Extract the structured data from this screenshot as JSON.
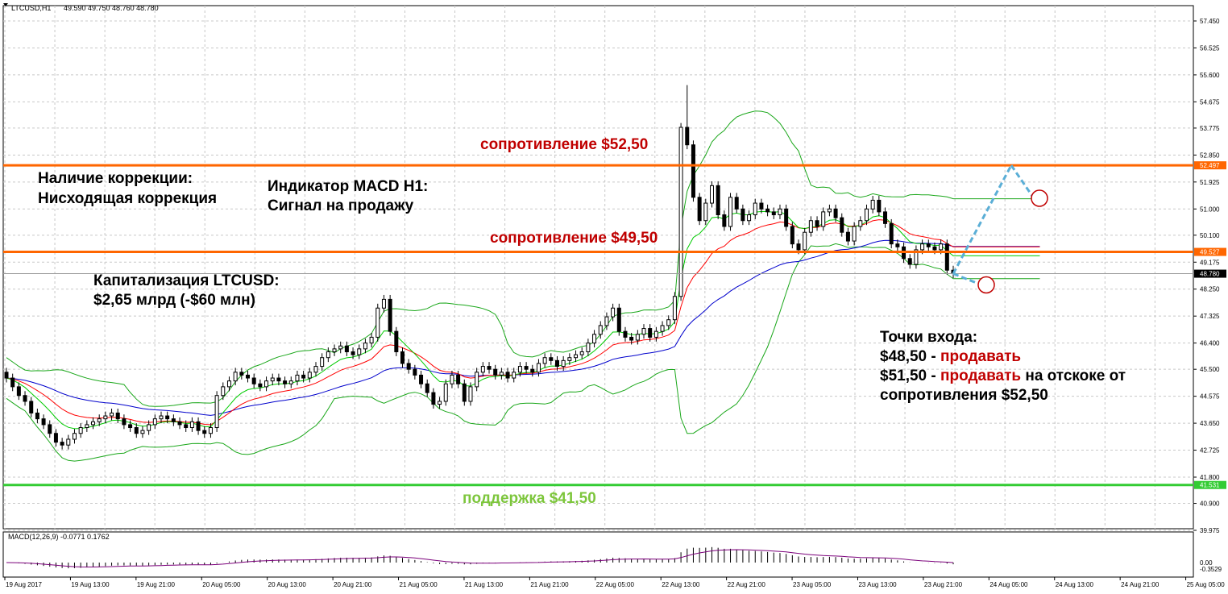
{
  "header": {
    "symbol": "LTCUSD,H1",
    "ohlc": "49.590 49.750 48.760 48.780"
  },
  "macd_header": "MACD(12,26,9) -0.0771 0.1762",
  "colors": {
    "resistance": "#ff6600",
    "support": "#33cc33",
    "bands": "#1aa71a",
    "ma_red": "#ff0000",
    "ma_green": "#00cc00",
    "ma_blue": "#0000cc",
    "macd": "#7b007b",
    "projection": "#5aaed6"
  },
  "annotations": {
    "correction_title": "Наличие коррекции:",
    "correction_value": "Нисходящая коррекция",
    "macd_title": "Индикатор MACD H1:",
    "macd_value": "Сигнал на продажу",
    "cap_title": "Капитализация LTCUSD:",
    "cap_value": "$2,65 млрд (-$60 млн)",
    "res1": "сопротивление $52,50",
    "res2": "сопротивление $49,50",
    "support": "поддержка $41,50",
    "entry_title": "Точки входа:",
    "entry1_price": "$48,50 -",
    "entry1_action": "продавать",
    "entry2_price": "$51,50 -",
    "entry2_action": "продавать",
    "entry2_rest": "на отскоке от",
    "entry2_rest2": "сопротивления $52,50"
  },
  "chart_data": {
    "type": "candlestick",
    "symbol": "LTCUSD",
    "timeframe": "H1",
    "ylim": [
      39.975,
      57.45
    ],
    "y_ticks": [
      "57.450",
      "56.525",
      "55.600",
      "54.675",
      "53.775",
      "52.850",
      "51.925",
      "51.000",
      "50.100",
      "49.175",
      "48.250",
      "47.325",
      "46.400",
      "45.500",
      "44.575",
      "43.650",
      "42.725",
      "41.800",
      "40.900",
      "39.975"
    ],
    "x_ticks": [
      "19 Aug 2017",
      "19 Aug 13:00",
      "19 Aug 21:00",
      "20 Aug 05:00",
      "20 Aug 13:00",
      "20 Aug 21:00",
      "21 Aug 05:00",
      "21 Aug 13:00",
      "21 Aug 21:00",
      "22 Aug 05:00",
      "22 Aug 13:00",
      "22 Aug 21:00",
      "23 Aug 05:00",
      "23 Aug 13:00",
      "23 Aug 21:00",
      "24 Aug 05:00",
      "24 Aug 13:00",
      "24 Aug 21:00",
      "25 Aug 05:00"
    ],
    "levels": [
      {
        "name": "resistance",
        "value": 52.497,
        "label": "52.497"
      },
      {
        "name": "resistance",
        "value": 49.527,
        "label": "49.527"
      },
      {
        "name": "support",
        "value": 41.531,
        "label": "41.531"
      }
    ],
    "current_price": {
      "value": 48.78,
      "label": "48.780"
    },
    "close": [
      45.2,
      44.9,
      44.6,
      44.4,
      44.0,
      43.8,
      43.6,
      43.3,
      43.0,
      42.9,
      43.1,
      43.3,
      43.5,
      43.6,
      43.7,
      43.8,
      43.9,
      44.0,
      43.8,
      43.6,
      43.5,
      43.3,
      43.4,
      43.6,
      43.8,
      43.9,
      43.8,
      43.7,
      43.6,
      43.5,
      43.7,
      43.4,
      43.3,
      43.5,
      44.6,
      44.9,
      45.1,
      45.4,
      45.3,
      45.2,
      45.0,
      44.9,
      45.1,
      45.2,
      45.1,
      45.0,
      45.1,
      45.3,
      45.2,
      45.4,
      45.6,
      45.9,
      46.1,
      46.2,
      46.3,
      46.1,
      46.0,
      46.2,
      46.4,
      46.6,
      47.6,
      47.9,
      46.8,
      46.1,
      45.7,
      45.5,
      45.3,
      45.0,
      44.7,
      44.3,
      44.4,
      45.0,
      45.3,
      45.0,
      44.4,
      44.9,
      45.4,
      45.6,
      45.5,
      45.3,
      45.4,
      45.2,
      45.4,
      45.6,
      45.5,
      45.4,
      45.7,
      45.9,
      45.8,
      45.6,
      45.8,
      45.9,
      46.0,
      46.1,
      46.4,
      46.7,
      47.0,
      47.3,
      47.6,
      46.8,
      46.6,
      46.5,
      46.7,
      46.9,
      46.6,
      46.8,
      47.0,
      47.2,
      48.0,
      53.8,
      53.2,
      51.4,
      50.6,
      51.2,
      51.8,
      50.8,
      50.4,
      51.4,
      51.0,
      50.6,
      50.8,
      51.2,
      51.0,
      50.9,
      50.8,
      51.0,
      50.4,
      49.8,
      49.6,
      50.2,
      50.6,
      50.4,
      50.9,
      51.0,
      50.7,
      50.2,
      49.9,
      50.4,
      50.6,
      51.0,
      51.3,
      50.9,
      50.5,
      49.8,
      49.7,
      49.3,
      49.1,
      49.6,
      49.8,
      49.7,
      49.6,
      49.8,
      48.9,
      48.78
    ],
    "macd": {
      "name": "MACD(12,26,9)",
      "main": -0.0771,
      "signal": 0.1762,
      "y_ticks": [
        "0.00",
        "-0.3529"
      ]
    }
  }
}
